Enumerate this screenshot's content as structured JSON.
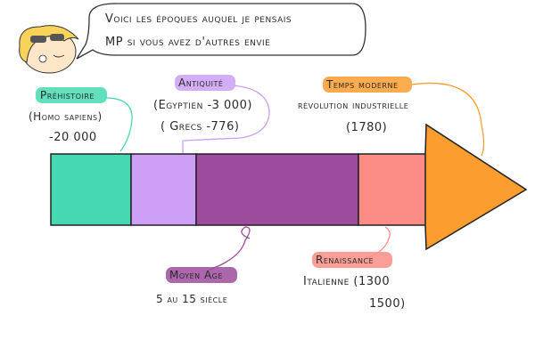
{
  "speech": {
    "lines": [
      "Voici les époques auquel je pensais",
      "MP si vous avez d'autres envie"
    ]
  },
  "periods": [
    {
      "label": "Préhistoire",
      "details": [
        "(Homo sapiens)",
        "-20 000"
      ]
    },
    {
      "label": "Antiquité",
      "details": [
        "(Egyptien -3 000)",
        "( Grecs -776)"
      ]
    },
    {
      "label": "Moyen Age",
      "details": [
        "5 au 15 siècle"
      ]
    },
    {
      "label": "Renaissance",
      "details": [
        "Italienne (1300",
        "1500)"
      ]
    },
    {
      "label": "Temps moderne",
      "details": [
        "révolution industrielle",
        "(1780)"
      ]
    }
  ]
}
